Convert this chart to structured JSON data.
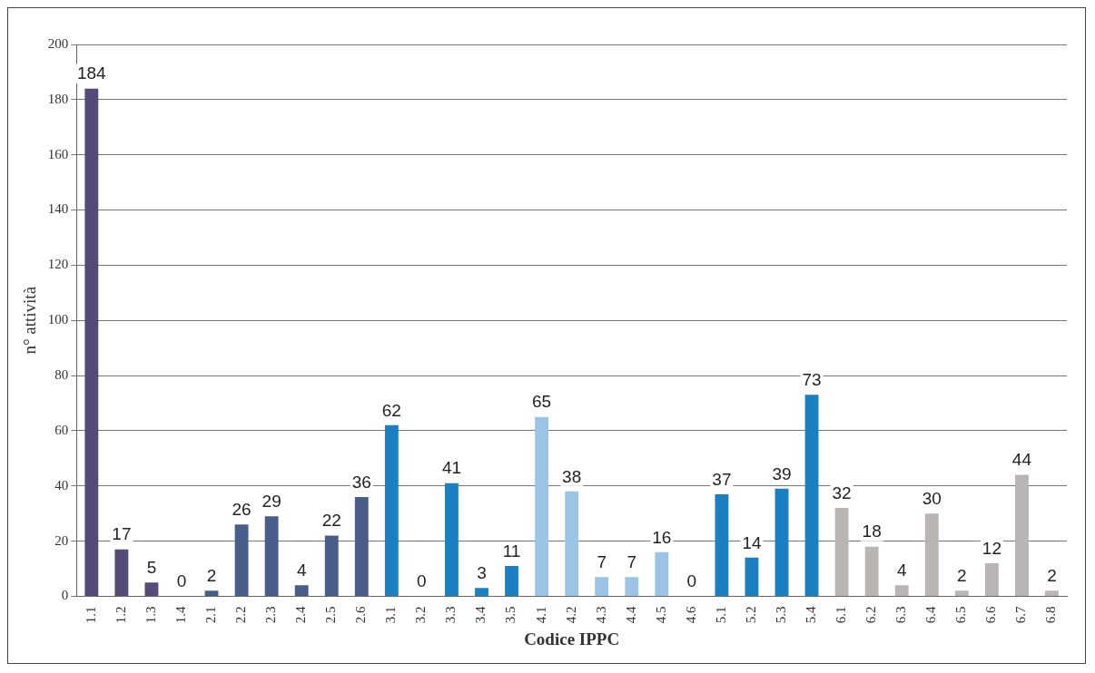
{
  "chart_data": {
    "type": "bar",
    "xlabel": "Codice IPPC",
    "ylabel": "n° attività",
    "categories": [
      "1.1",
      "1.2",
      "1.3",
      "1.4",
      "2.1",
      "2.2",
      "2.3",
      "2.4",
      "2.5",
      "2.6",
      "3.1",
      "3.2",
      "3.3",
      "3.4",
      "3.5",
      "4.1",
      "4.2",
      "4.3",
      "4.4",
      "4.5",
      "4.6",
      "5.1",
      "5.2",
      "5.3",
      "5.4",
      "6.1",
      "6.2",
      "6.3",
      "6.4",
      "6.5",
      "6.6",
      "6.7",
      "6.8"
    ],
    "values": [
      184,
      17,
      5,
      0,
      2,
      26,
      29,
      4,
      22,
      36,
      62,
      0,
      41,
      3,
      11,
      65,
      38,
      7,
      7,
      16,
      0,
      37,
      14,
      39,
      73,
      32,
      18,
      4,
      30,
      2,
      12,
      44,
      2
    ],
    "colors": [
      "#564a78",
      "#564a78",
      "#564a78",
      "#564a78",
      "#4a5c8a",
      "#4a5c8a",
      "#4a5c8a",
      "#4a5c8a",
      "#4a5c8a",
      "#4a5c8a",
      "#1a80c2",
      "#1a80c2",
      "#1a80c2",
      "#1a80c2",
      "#1a80c2",
      "#9cc4e6",
      "#9cc4e6",
      "#9cc4e6",
      "#9cc4e6",
      "#9cc4e6",
      "#9cc4e6",
      "#1a80c2",
      "#1a80c2",
      "#1a80c2",
      "#1a80c2",
      "#b9b5b5",
      "#b9b5b5",
      "#b9b5b5",
      "#b9b5b5",
      "#b9b5b5",
      "#b9b5b5",
      "#b9b5b5",
      "#b9b5b5"
    ],
    "ylim": [
      0,
      200
    ],
    "yticks": [
      0,
      20,
      40,
      60,
      80,
      100,
      120,
      140,
      160,
      180,
      200
    ],
    "grid": "y",
    "data_labels": true
  }
}
